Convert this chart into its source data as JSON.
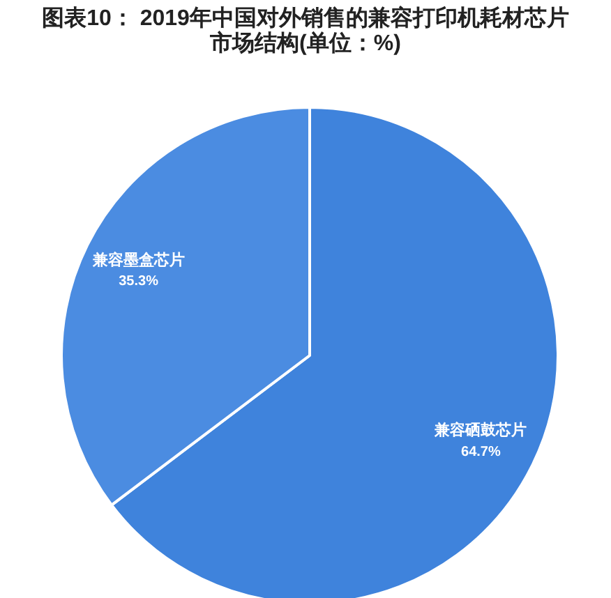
{
  "chart_data": {
    "type": "pie",
    "title": "图表10： 2019年中国对外销售的兼容打印机耗材芯片市场结构(单位：%)",
    "categories": [
      "兼容硒鼓芯片",
      "兼容墨盒芯片"
    ],
    "values": [
      64.7,
      35.3
    ],
    "colors": [
      "#3f83dc",
      "#4b8ce1"
    ],
    "value_labels": [
      "64.7%",
      "35.3%"
    ]
  }
}
